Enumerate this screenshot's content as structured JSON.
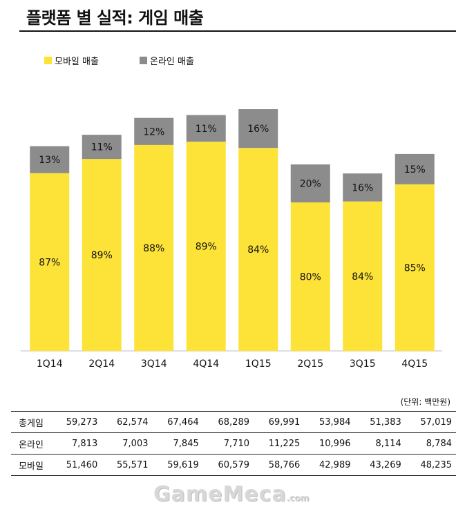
{
  "header": {
    "title": "플랫폼 별 실적: 게임 매출"
  },
  "legend": {
    "mobile": "모바일 매출",
    "online": "온라인 매출"
  },
  "colors": {
    "mobile": "#FDE238",
    "online": "#8C8C8C"
  },
  "chart_data": {
    "type": "bar",
    "stacked": true,
    "title": "플랫폼 별 실적: 게임 매출",
    "categories": [
      "1Q14",
      "2Q14",
      "3Q14",
      "4Q14",
      "1Q15",
      "2Q15",
      "3Q15",
      "4Q15"
    ],
    "series": [
      {
        "name": "모바일 매출",
        "values": [
          51460,
          55571,
          59619,
          60579,
          58766,
          42989,
          43269,
          48235
        ],
        "labels": [
          "87%",
          "89%",
          "88%",
          "89%",
          "84%",
          "80%",
          "84%",
          "85%"
        ]
      },
      {
        "name": "온라인 매출",
        "values": [
          7813,
          7003,
          7845,
          7710,
          11225,
          10996,
          8114,
          8784
        ],
        "labels": [
          "13%",
          "11%",
          "12%",
          "11%",
          "16%",
          "20%",
          "16%",
          "15%"
        ]
      }
    ],
    "ylim": [
      0,
      75000
    ],
    "grid": false,
    "legend_position": "top-left"
  },
  "table": {
    "unit": "(단위: 백만원)",
    "rows": [
      {
        "label": "총게임",
        "values": [
          "59,273",
          "62,574",
          "67,464",
          "68,289",
          "69,991",
          "53,984",
          "51,383",
          "57,019"
        ]
      },
      {
        "label": "온라인",
        "values": [
          "7,813",
          "7,003",
          "7,845",
          "7,710",
          "11,225",
          "10,996",
          "8,114",
          "8,784"
        ]
      },
      {
        "label": "모바일",
        "values": [
          "51,460",
          "55,571",
          "59,619",
          "60,579",
          "58,766",
          "42,989",
          "43,269",
          "48,235"
        ]
      }
    ]
  },
  "watermark": {
    "text": "GameMeca",
    "suffix": ".com"
  }
}
